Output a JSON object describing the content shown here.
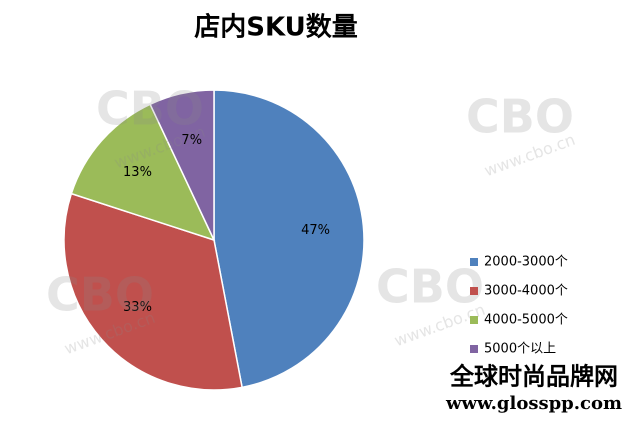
{
  "chart_data": {
    "type": "pie",
    "title": "店内SKU数量",
    "categories": [
      "2000-3000个",
      "3000-4000个",
      "4000-5000个",
      "5000个以上"
    ],
    "values": [
      47,
      33,
      13,
      7
    ],
    "value_labels": [
      "47%",
      "33%",
      "13%",
      "7%"
    ],
    "colors": [
      "#4f81bd",
      "#c0504d",
      "#9bbb59",
      "#8064a2"
    ],
    "legend": "right"
  },
  "watermark": {
    "logo": "CBO",
    "url": "www.cbo.cn"
  },
  "footer": {
    "brand": "全球时尚品牌网",
    "url": "www.glosspp.com"
  }
}
